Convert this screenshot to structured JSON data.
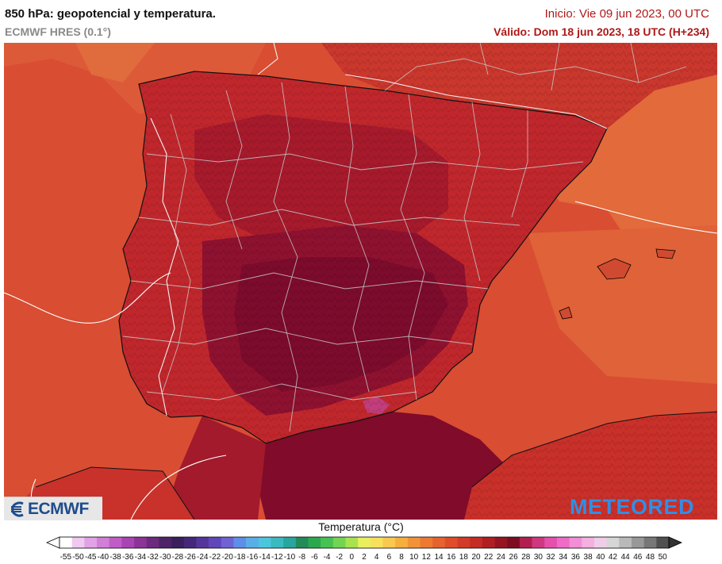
{
  "header": {
    "title": "850 hPa: geopotencial y temperatura.",
    "model": "ECMWF HRES (0.1°)",
    "init": "Inicio: Vie 09 jun 2023, 00 UTC",
    "valid": "Válido: Dom 18 jun 2023, 18 UTC (H+234)"
  },
  "logos": {
    "left": "ECMWF",
    "right": "METEORED"
  },
  "colorbar": {
    "title": "Temperatura (°C)",
    "labels": [
      "-55",
      "-50",
      "-45",
      "-40",
      "-38",
      "-36",
      "-34",
      "-32",
      "-30",
      "-28",
      "-26",
      "-24",
      "-22",
      "-20",
      "-18",
      "-16",
      "-14",
      "-12",
      "-10",
      "-8",
      "-6",
      "-4",
      "-2",
      "0",
      "2",
      "4",
      "6",
      "8",
      "10",
      "12",
      "14",
      "16",
      "18",
      "20",
      "22",
      "24",
      "26",
      "28",
      "30",
      "32",
      "34",
      "36",
      "38",
      "40",
      "42",
      "44",
      "46",
      "48",
      "50"
    ],
    "colors": [
      "#ffffff",
      "#f0c8f0",
      "#e2a2e6",
      "#d27fd8",
      "#c05cc8",
      "#a844b4",
      "#8c3398",
      "#6d2a7e",
      "#4e2466",
      "#3a1f5c",
      "#43287a",
      "#54369a",
      "#6046ba",
      "#6f62d4",
      "#5e8ee8",
      "#5aaee8",
      "#4cc6de",
      "#3ab9c0",
      "#27a59e",
      "#228b5a",
      "#2ba84e",
      "#45c251",
      "#73d452",
      "#a8e24f",
      "#e9ef5d",
      "#f7e05e",
      "#f9c84f",
      "#f6ae3e",
      "#f19336",
      "#ec7a32",
      "#e6622e",
      "#df4c2a",
      "#d33a27",
      "#c42c24",
      "#b01f22",
      "#961522",
      "#7d0e22",
      "#b21f4e",
      "#d03780",
      "#e650ad",
      "#ee6bc6",
      "#f28ed5",
      "#f4b0df",
      "#efcde8",
      "#d6d6d6",
      "#b9b9b9",
      "#989898",
      "#777777",
      "#505050"
    ]
  }
}
